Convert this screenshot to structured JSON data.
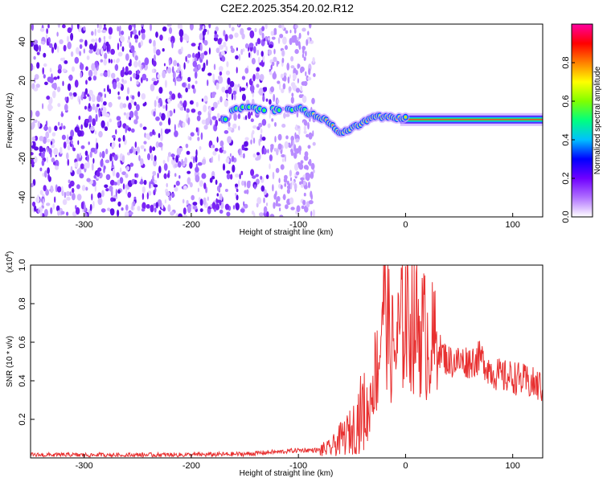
{
  "title": "C2E2.2025.354.20.02.R12",
  "chart_data": [
    {
      "type": "heatmap",
      "xlabel": "Height of straight line (km)",
      "ylabel": "Frequency (Hz)",
      "xlim": [
        -350,
        128
      ],
      "ylim": [
        -50,
        49
      ],
      "x_ticks": [
        -300,
        -200,
        -100,
        0,
        100
      ],
      "x_tick_labels": [
        "-300",
        "-200",
        "-100",
        "0",
        "100"
      ],
      "y_ticks": [
        -40,
        -20,
        0,
        20,
        40
      ],
      "y_tick_labels": [
        "-40",
        "-20",
        "0",
        "20",
        "40"
      ],
      "colorbar": {
        "label": "Normalized spectral amplitude",
        "range": [
          0,
          1
        ],
        "ticks": [
          0.0,
          0.2,
          0.4,
          0.6,
          0.8
        ],
        "tick_labels": [
          "0.0",
          "0.2",
          "0.4",
          "0.6",
          "0.8"
        ],
        "colors": [
          "#ffffff",
          "#b070ff",
          "#7000ff",
          "#0000ff",
          "#00c0ff",
          "#00ff80",
          "#80ff00",
          "#ffff00",
          "#ff8000",
          "#ff0000",
          "#ff00a0"
        ]
      },
      "noise_region_x": [
        -350,
        -85
      ],
      "signal_track": [
        {
          "x": -165,
          "y": 5
        },
        {
          "x": -145,
          "y": 6
        },
        {
          "x": -135,
          "y": 5
        },
        {
          "x": -120,
          "y": 5
        },
        {
          "x": -100,
          "y": 6
        },
        {
          "x": -90,
          "y": 3
        },
        {
          "x": -80,
          "y": 1
        },
        {
          "x": -70,
          "y": -2
        },
        {
          "x": -60,
          "y": -7
        },
        {
          "x": -50,
          "y": -4
        },
        {
          "x": -40,
          "y": -2
        },
        {
          "x": -30,
          "y": 2
        },
        {
          "x": -20,
          "y": 1
        },
        {
          "x": -10,
          "y": 1
        },
        {
          "x": 0,
          "y": 1
        },
        {
          "x": 50,
          "y": 0
        },
        {
          "x": 128,
          "y": 0
        }
      ]
    },
    {
      "type": "line",
      "xlabel": "Height of straight line (km)",
      "ylabel": "SNR (10 * v/v)",
      "y_multiplier": "(x10",
      "y_multiplier_exp": "4",
      "y_multiplier_close": ")",
      "xlim": [
        -350,
        128
      ],
      "ylim": [
        0,
        1.0
      ],
      "x_ticks": [
        -300,
        -200,
        -100,
        0,
        100
      ],
      "x_tick_labels": [
        "-300",
        "-200",
        "-100",
        "0",
        "100"
      ],
      "y_ticks": [
        0.2,
        0.4,
        0.6,
        0.8,
        1.0
      ],
      "y_tick_labels": [
        "0.2",
        "0.4",
        "0.6",
        "0.8",
        "1.0"
      ],
      "line_color": "#e83030",
      "series": [
        {
          "name": "SNR",
          "x": [
            -350,
            -300,
            -250,
            -200,
            -150,
            -125,
            -120,
            -100,
            -80,
            -70,
            -60,
            -50,
            -40,
            -35,
            -30,
            -25,
            -20,
            -15,
            -10,
            0,
            10,
            20,
            30,
            40,
            50,
            60,
            70,
            80,
            90,
            100,
            110,
            120,
            128
          ],
          "y": [
            0.015,
            0.015,
            0.015,
            0.016,
            0.02,
            0.03,
            0.03,
            0.04,
            0.04,
            0.05,
            0.1,
            0.14,
            0.25,
            0.22,
            0.42,
            0.5,
            0.95,
            0.6,
            0.55,
            0.75,
            0.7,
            0.62,
            0.57,
            0.5,
            0.5,
            0.5,
            0.52,
            0.45,
            0.42,
            0.42,
            0.4,
            0.38,
            0.37
          ]
        }
      ]
    }
  ]
}
